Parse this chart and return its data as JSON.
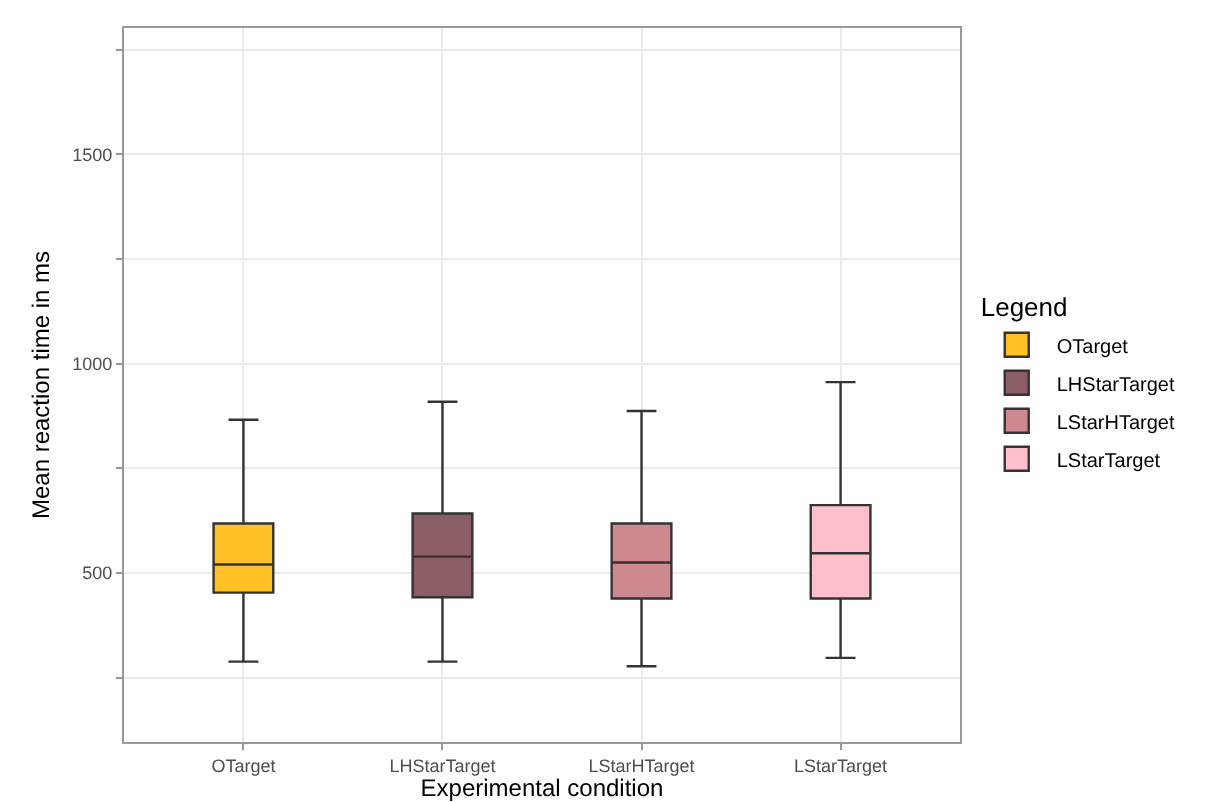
{
  "chart_data": {
    "type": "box",
    "xlabel": "Experimental condition",
    "ylabel": "Mean reaction time in ms",
    "legend_title": "Legend",
    "legend": "right",
    "grid": true,
    "categories": [
      "OTarget",
      "LHStarTarget",
      "LStarHTarget",
      "LStarTarget"
    ],
    "ylim": [
      96,
      1802
    ],
    "yticks": [
      {
        "value": 250,
        "label": null
      },
      500,
      {
        "value": 750,
        "label": null
      },
      1000,
      {
        "value": 1250,
        "label": null
      },
      1500,
      {
        "value": 1750,
        "label": null
      }
    ],
    "series": [
      {
        "name": "OTarget",
        "color": "#ffc125",
        "boxes": [
          {
            "low": 288,
            "q1": 453,
            "median": 520,
            "q3": 618,
            "high": 866
          },
          null,
          null,
          null
        ]
      },
      {
        "name": "LHStarTarget",
        "color": "#8b5e66",
        "boxes": [
          null,
          {
            "low": 288,
            "q1": 442,
            "median": 539,
            "q3": 642,
            "high": 909
          },
          null,
          null
        ]
      },
      {
        "name": "LStarHTarget",
        "color": "#cd8890",
        "boxes": [
          null,
          null,
          {
            "low": 277,
            "q1": 439,
            "median": 525,
            "q3": 618,
            "high": 887
          },
          null
        ]
      },
      {
        "name": "LStarTarget",
        "color": "#ffc0cb",
        "boxes": [
          null,
          null,
          null,
          {
            "low": 297,
            "q1": 439,
            "median": 547,
            "q3": 662,
            "high": 956
          }
        ]
      }
    ]
  }
}
